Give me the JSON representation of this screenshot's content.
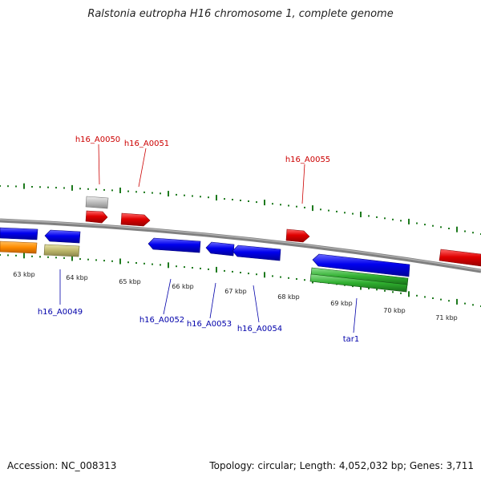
{
  "title": "Ralstonia eutropha H16 chromosome 1, complete genome",
  "footer": {
    "accession": "Accession: NC_008313",
    "summary": "Topology: circular; Length: 4,052,032 bp; Genes: 3,711"
  },
  "colors": {
    "backbone": "#808080",
    "ticks": "#1e7a1e",
    "forward_label": "#cc0000",
    "reverse_label": "#0000aa",
    "feature_red": "#e00000",
    "feature_blue": "#0000ee",
    "feature_gray": "#bcbcbc",
    "feature_orange": "#ff8c00",
    "feature_olive": "#bdb76b",
    "feature_green": "#2fae2f"
  },
  "scale": {
    "tick_labels": [
      "63 kbp",
      "64 kbp",
      "65 kbp",
      "66 kbp",
      "67 kbp",
      "68 kbp",
      "69 kbp",
      "70 kbp",
      "71 kbp"
    ]
  },
  "gene_labels": {
    "forward": [
      "h16_A0050",
      "h16_A0051",
      "h16_A0055"
    ],
    "reverse": [
      "h16_A0049",
      "h16_A0052",
      "h16_A0053",
      "h16_A0054",
      "tar1"
    ]
  }
}
